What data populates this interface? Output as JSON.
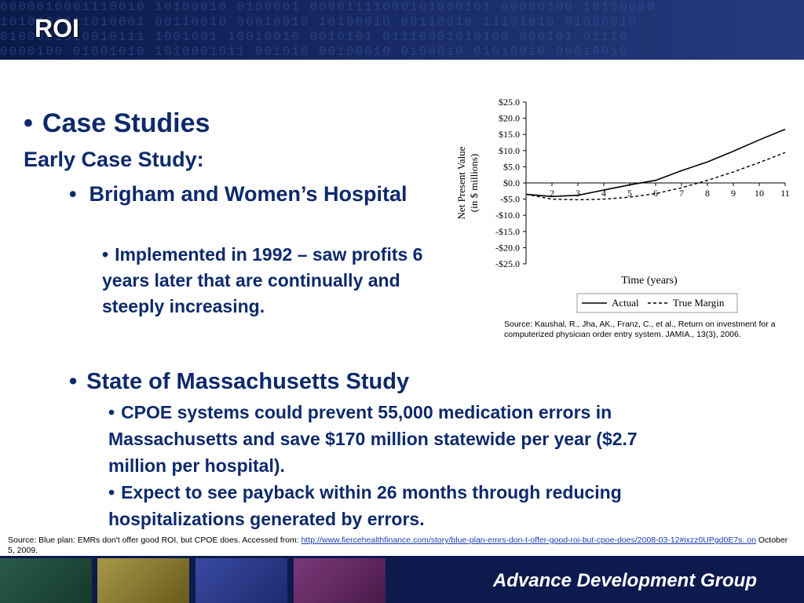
{
  "slide": {
    "title": "ROI",
    "case_studies_heading": "Case Studies",
    "early_case_label": "Early Case Study:",
    "brigham_heading": "Brigham and Women’s Hospital",
    "brigham_detail": "Implemented in 1992 – saw profits 6 years later that are continually and steeply increasing.",
    "mass_heading": "State of Massachusetts Study",
    "mass_point1": "CPOE systems could prevent 55,000 medication errors in Massachusetts and save $170 million statewide per year ($2.7 million per hospital).",
    "mass_point2": "Expect to see payback within 26 months through reducing hospitalizations generated by errors.",
    "chart_source": "Source:  Kaushal, R., Jha, AK., Franz, C., et al., Return on investment for a computerized physician order entry system. JAMIA., 13(3), 2006.",
    "bottom_source_prefix": "Source:  Blue plan: EMRs don't offer good ROI, but CPOE does.  Accessed from:",
    "bottom_source_link": "http://www.fiercehealthfinance.com/story/blue-plan-emrs-don-t-offer-good-roi-but-cpoe-does/2008-03-12#ixzz0UPgd0E7s..on",
    "bottom_source_date": "October 5, 2009.",
    "org_name": "Advance Development Group",
    "bullet": "•"
  },
  "colors": {
    "header_bg": "#0a1a4a",
    "text_navy": "#0d2a6b",
    "footer_bg": "#0c1a4e",
    "thumb_colors": [
      "#1f4a3a",
      "#8a7a2a",
      "#2a3a8a",
      "#5a2a5a"
    ]
  },
  "chart_data": {
    "type": "line",
    "xlabel": "Time (years)",
    "ylabel": "Net Present Value (in $ millions)",
    "x": [
      1,
      2,
      3,
      4,
      5,
      6,
      7,
      8,
      9,
      10,
      11
    ],
    "xticks": [
      "2",
      "3",
      "4",
      "5",
      "6",
      "7",
      "8",
      "9",
      "10",
      "11"
    ],
    "yticks": [
      "$25.0",
      "$20.0",
      "$15.0",
      "$10.0",
      "$5.0",
      "$0.0",
      "-$5.0",
      "-$10.0",
      "-$15.0",
      "-$20.0",
      "-$25.0"
    ],
    "ylim": [
      -25,
      25
    ],
    "xlim": [
      1,
      11
    ],
    "legend_position": "bottom",
    "series": [
      {
        "name": "Actual",
        "style": "solid",
        "values": [
          -3.5,
          -4.2,
          -3.8,
          -2.2,
          -0.6,
          0.8,
          3.8,
          6.5,
          9.8,
          13.3,
          16.6
        ]
      },
      {
        "name": "True Margin",
        "style": "dashed",
        "values": [
          -3.5,
          -5.0,
          -5.2,
          -5.0,
          -4.4,
          -3.3,
          -1.5,
          0.8,
          3.4,
          6.3,
          9.4
        ]
      }
    ]
  }
}
